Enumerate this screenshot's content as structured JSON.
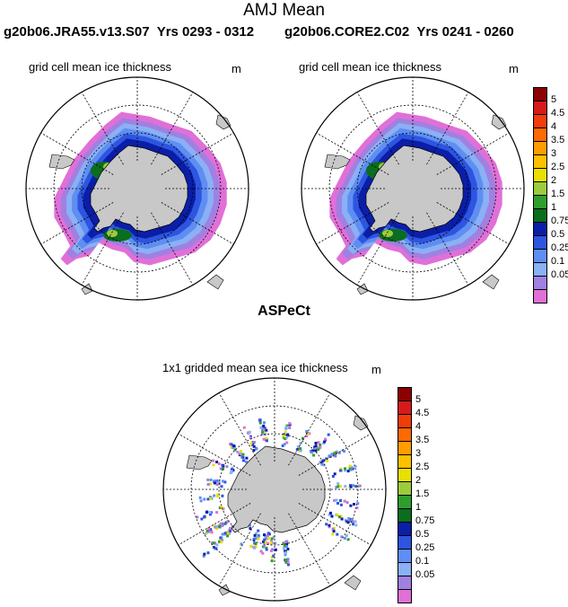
{
  "title": "AMJ Mean",
  "runs": [
    {
      "name": "g20b06.JRA55.v13.S07",
      "years": "Yrs 0293 - 0312"
    },
    {
      "name": "g20b06.CORE2.C02",
      "years": "Yrs 0241 - 0260"
    }
  ],
  "panels": {
    "left": {
      "title": "grid cell mean ice thickness",
      "units": "m"
    },
    "right": {
      "title": "grid cell mean ice thickness",
      "units": "m"
    },
    "obs": {
      "heading": "ASPeCt",
      "title": "1x1 gridded mean sea ice thickness",
      "units": "m"
    }
  },
  "colorbar": {
    "levels": [
      "5",
      "4.5",
      "4",
      "3.5",
      "3",
      "2.5",
      "2",
      "1.5",
      "1",
      "0.75",
      "0.5",
      "0.25",
      "0.1",
      "0.05"
    ],
    "colors": [
      "#8b0000",
      "#d71a1a",
      "#f23c0a",
      "#ff6a00",
      "#ff9c00",
      "#ffc000",
      "#e8e000",
      "#9ccb3c",
      "#2f9e2f",
      "#0a6e1e",
      "#0a1ea8",
      "#2d55e0",
      "#5f8ef2",
      "#8ab0f5",
      "#a080e0",
      "#e070d8"
    ]
  }
}
